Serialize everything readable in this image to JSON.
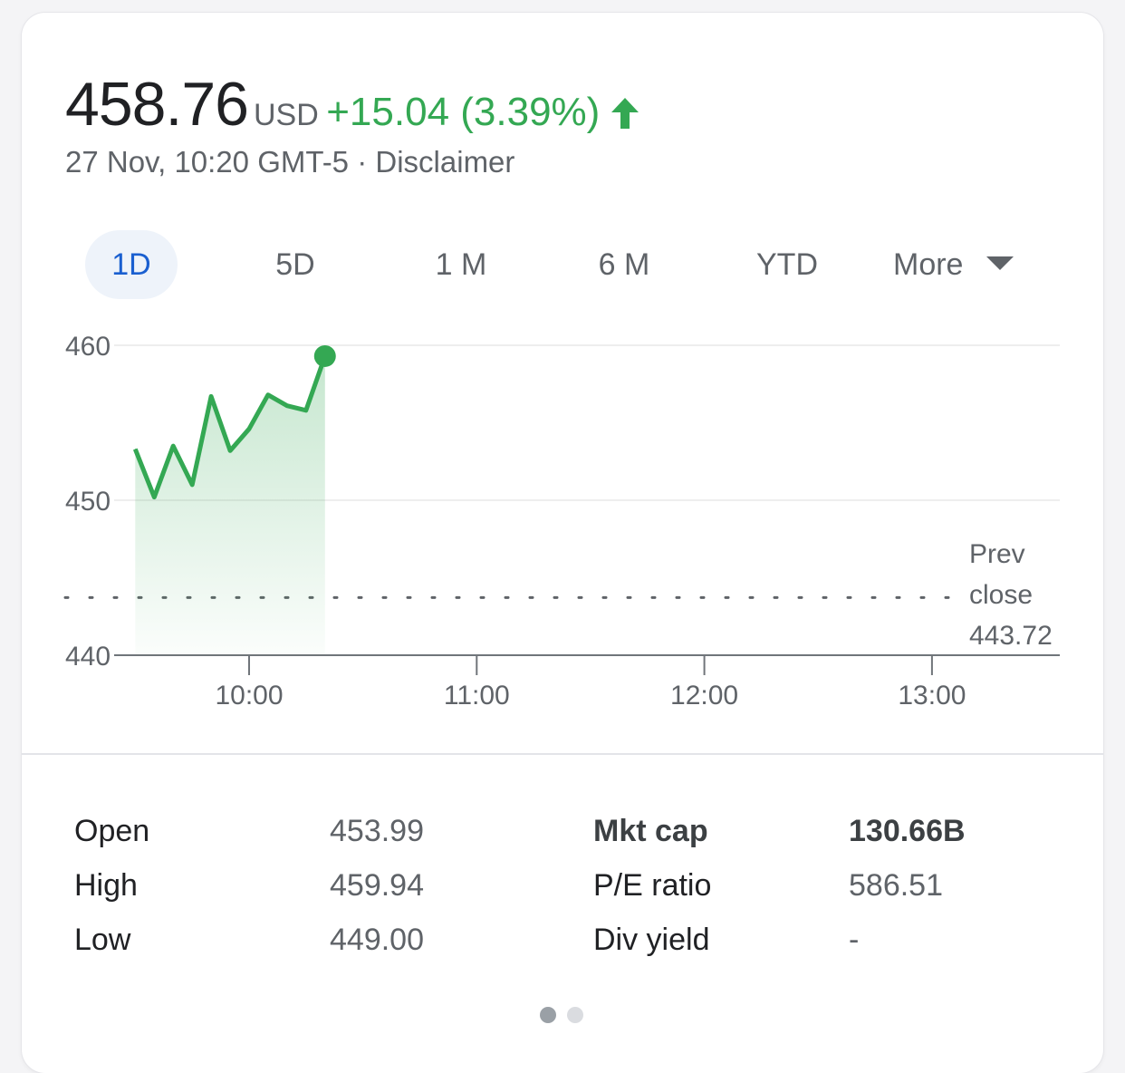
{
  "quote": {
    "price": "458.76",
    "currency": "USD",
    "change": "+15.04 (3.39%)",
    "timestamp": "27 Nov, 10:20 GMT-5",
    "separator": "·",
    "disclaimer": "Disclaimer",
    "up_color": "#34a853",
    "arrow_icon": "arrow-up-icon"
  },
  "tabs": [
    {
      "label": "1D",
      "active": true
    },
    {
      "label": "5D",
      "active": false
    },
    {
      "label": "1 M",
      "active": false
    },
    {
      "label": "6 M",
      "active": false
    },
    {
      "label": "YTD",
      "active": false
    },
    {
      "label": "More",
      "active": false
    }
  ],
  "chart_data": {
    "type": "line",
    "x_ticks": [
      "10:00",
      "11:00",
      "12:00",
      "13:00"
    ],
    "y_ticks": [
      440,
      450,
      460
    ],
    "ylim": [
      440,
      460
    ],
    "x": [
      "09:30",
      "09:35",
      "09:40",
      "09:45",
      "09:50",
      "09:55",
      "10:00",
      "10:05",
      "10:10",
      "10:15",
      "10:20"
    ],
    "values": [
      453.3,
      450.2,
      453.5,
      451.0,
      456.7,
      453.2,
      454.6,
      456.8,
      456.1,
      455.8,
      459.3
    ],
    "prev_close": {
      "label_line1": "Prev",
      "label_line2": "close",
      "value": "443.72",
      "y": 443.72
    },
    "line_color": "#34a853",
    "grid": true
  },
  "stats": {
    "left": [
      {
        "label": "Open",
        "value": "453.99"
      },
      {
        "label": "High",
        "value": "459.94"
      },
      {
        "label": "Low",
        "value": "449.00"
      }
    ],
    "right": [
      {
        "label": "Mkt cap",
        "value": "130.66B"
      },
      {
        "label": "P/E ratio",
        "value": "586.51"
      },
      {
        "label": "Div yield",
        "value": "-"
      }
    ]
  },
  "pager": {
    "pages": 2,
    "current": 1
  }
}
